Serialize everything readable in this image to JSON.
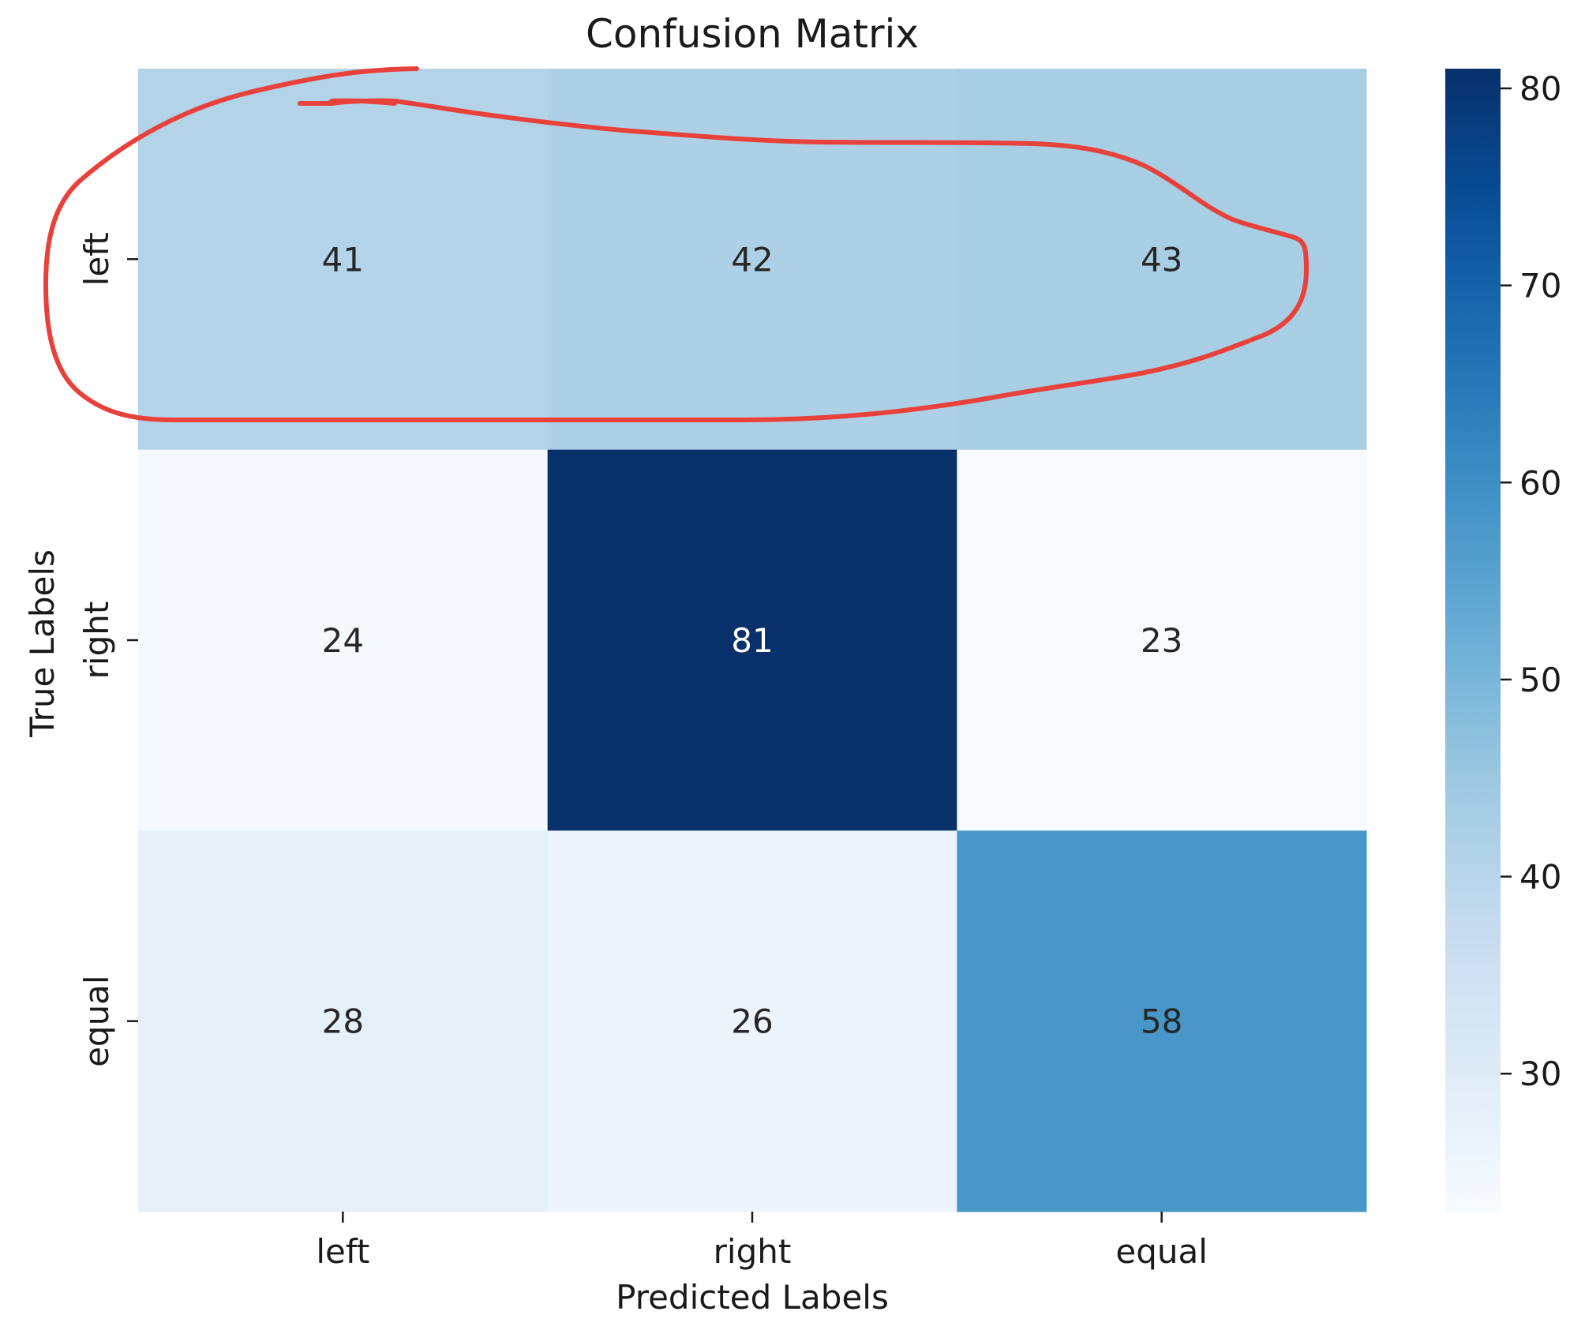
{
  "chart_data": {
    "type": "heatmap",
    "title": "Confusion Matrix",
    "xlabel": "Predicted Labels",
    "ylabel": "True Labels",
    "x_categories": [
      "left",
      "right",
      "equal"
    ],
    "y_categories": [
      "left",
      "right",
      "equal"
    ],
    "values": [
      [
        41,
        42,
        43
      ],
      [
        24,
        81,
        23
      ],
      [
        28,
        26,
        58
      ]
    ],
    "colormap": "Blues",
    "colorbar": {
      "range": [
        23,
        81
      ],
      "ticks": [
        30,
        40,
        50,
        60,
        70,
        80
      ]
    },
    "annotation": "hand-drawn red outline around the \"left\" true-label row",
    "annotation_color": "#e8413c"
  }
}
